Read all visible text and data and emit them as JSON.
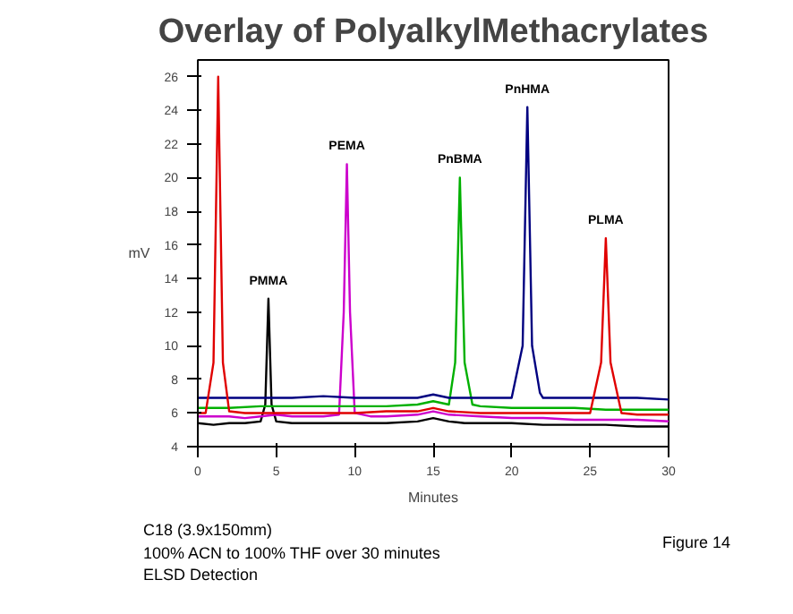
{
  "chart_data": {
    "type": "line",
    "title": "Overlay of PolyalkylMethacrylates",
    "xlabel": "Minutes",
    "ylabel": "mV",
    "xlim": [
      0,
      30
    ],
    "ylim": [
      4,
      27
    ],
    "xticks": [
      0,
      5,
      10,
      15,
      20,
      25,
      30
    ],
    "yticks": [
      4,
      6,
      8,
      10,
      12,
      14,
      16,
      18,
      20,
      22,
      24,
      26
    ],
    "grid": false,
    "series": [
      {
        "color": "#000000",
        "x": [
          0,
          1,
          2,
          3,
          4,
          4.3,
          4.5,
          4.7,
          5,
          6,
          8,
          10,
          12,
          14,
          15,
          16,
          17,
          18,
          20,
          22,
          24,
          26,
          28,
          30
        ],
        "values": [
          5.4,
          5.3,
          5.4,
          5.4,
          5.5,
          6.5,
          12.8,
          6.5,
          5.5,
          5.4,
          5.4,
          5.4,
          5.4,
          5.5,
          5.7,
          5.5,
          5.4,
          5.4,
          5.4,
          5.3,
          5.3,
          5.3,
          5.2,
          5.2
        ]
      },
      {
        "color": "#cc00cc",
        "x": [
          0,
          1,
          2,
          3,
          4,
          5,
          6,
          8,
          9,
          9.3,
          9.5,
          9.7,
          10,
          11,
          12,
          14,
          15,
          16,
          18,
          20,
          22,
          24,
          26,
          28,
          30
        ],
        "values": [
          5.8,
          5.8,
          5.8,
          5.7,
          5.8,
          5.9,
          5.8,
          5.8,
          5.9,
          12,
          20.8,
          12,
          6.0,
          5.8,
          5.8,
          5.9,
          6.1,
          5.9,
          5.8,
          5.7,
          5.7,
          5.6,
          5.6,
          5.6,
          5.5
        ]
      },
      {
        "color": "#00b000",
        "x": [
          0,
          2,
          4,
          6,
          8,
          10,
          12,
          14,
          15,
          16,
          16.4,
          16.7,
          17,
          17.5,
          18,
          20,
          22,
          24,
          26,
          28,
          30
        ],
        "values": [
          6.3,
          6.3,
          6.4,
          6.4,
          6.4,
          6.4,
          6.4,
          6.5,
          6.7,
          6.5,
          9,
          20,
          9,
          6.5,
          6.4,
          6.3,
          6.3,
          6.3,
          6.2,
          6.2,
          6.2
        ]
      },
      {
        "color": "#000080",
        "x": [
          0,
          2,
          4,
          6,
          8,
          10,
          12,
          14,
          15,
          16,
          18,
          20,
          20.7,
          21,
          21.3,
          21.8,
          22,
          24,
          26,
          28,
          30
        ],
        "values": [
          6.9,
          6.9,
          6.9,
          6.9,
          7.0,
          6.9,
          6.9,
          6.9,
          7.1,
          6.9,
          6.9,
          6.9,
          10,
          24.2,
          10,
          7.2,
          6.9,
          6.9,
          6.9,
          6.9,
          6.8
        ]
      },
      {
        "color": "#e00000",
        "x": [
          0,
          0.5,
          1,
          1.3,
          1.6,
          2,
          3,
          4,
          6,
          8,
          10,
          12,
          14,
          15,
          16,
          18,
          20,
          22,
          24,
          25,
          25.7,
          26,
          26.3,
          27,
          28,
          30
        ],
        "values": [
          6.0,
          6.0,
          9,
          26,
          9,
          6.1,
          6.0,
          6.0,
          6.0,
          6.0,
          6.0,
          6.1,
          6.1,
          6.3,
          6.1,
          6.0,
          6.0,
          6.0,
          6.0,
          6.0,
          9,
          16.4,
          9,
          6.0,
          5.9,
          5.9
        ]
      }
    ],
    "annotations": [
      {
        "text": "PMMA",
        "x": 4.5,
        "y": 12.8
      },
      {
        "text": "PEMA",
        "x": 9.5,
        "y": 20.8
      },
      {
        "text": "PnBMA",
        "x": 16.7,
        "y": 20
      },
      {
        "text": "PnHMA",
        "x": 21,
        "y": 24.2
      },
      {
        "text": "PLMA",
        "x": 26,
        "y": 16.4
      },
      "C18 (3.9x150mm)",
      "100% ACN to 100% THF over 30 minutes",
      "ELSD Detection",
      "Figure 14"
    ]
  }
}
